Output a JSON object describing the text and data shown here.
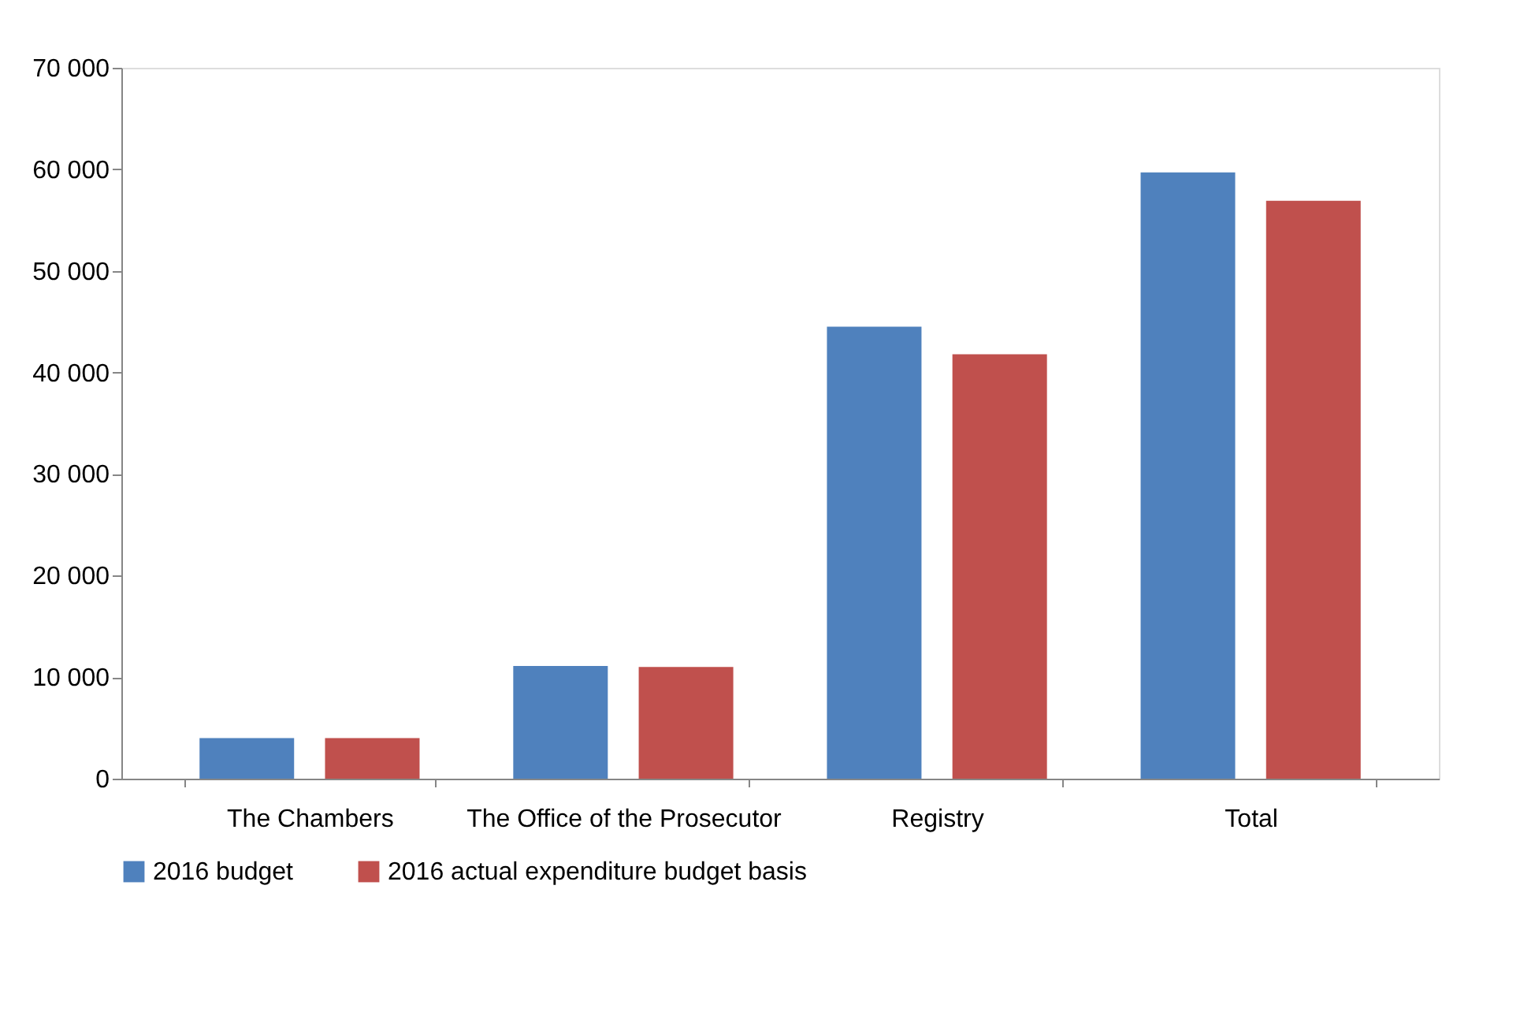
{
  "chart_data": {
    "type": "bar",
    "categories": [
      "The Chambers",
      "The Office of the Prosecutor",
      "Registry",
      "Total"
    ],
    "series": [
      {
        "name": "2016 budget",
        "color": "#4f81bd",
        "values": [
          4000,
          11100,
          44500,
          59700
        ]
      },
      {
        "name": "2016 actual expenditure budget basis",
        "color": "#c0504d",
        "values": [
          4000,
          11000,
          41800,
          56900
        ]
      }
    ],
    "ylim": [
      0,
      70000
    ],
    "yticks": [
      {
        "value": 0,
        "label": "0"
      },
      {
        "value": 10000,
        "label": "10 000"
      },
      {
        "value": 20000,
        "label": "20 000"
      },
      {
        "value": 30000,
        "label": "30 000"
      },
      {
        "value": 40000,
        "label": "40 000"
      },
      {
        "value": 50000,
        "label": "50 000"
      },
      {
        "value": 60000,
        "label": "60 000"
      },
      {
        "value": 70000,
        "label": "70 000"
      }
    ],
    "grid": false,
    "legend": "bottom"
  }
}
